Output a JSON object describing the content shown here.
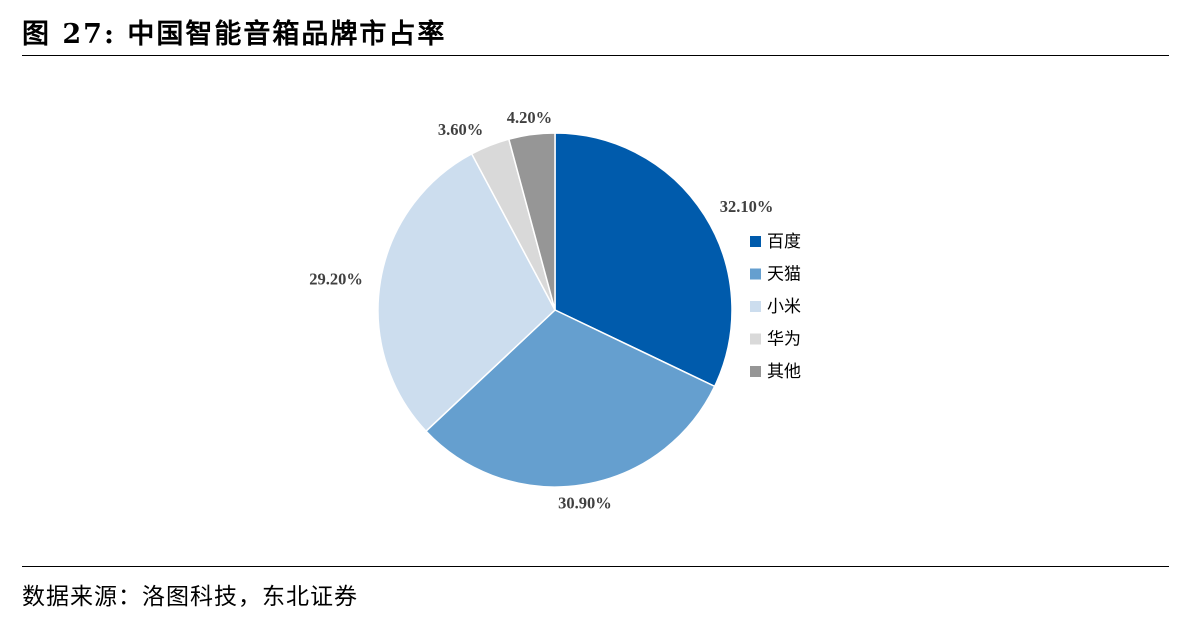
{
  "figure": {
    "title": "图 27: 中国智能音箱品牌市占率",
    "source": "数据来源：洛图科技，东北证券"
  },
  "chart_data": {
    "type": "pie",
    "title": "",
    "slices": [
      {
        "label": "百度",
        "value": 32.1,
        "display": "32.10%",
        "color": "#005BAC"
      },
      {
        "label": "天猫",
        "value": 30.9,
        "display": "30.90%",
        "color": "#659FCF"
      },
      {
        "label": "小米",
        "value": 29.2,
        "display": "29.20%",
        "color": "#CCDDEE"
      },
      {
        "label": "华为",
        "value": 3.6,
        "display": "3.60%",
        "color": "#D9D9D9"
      },
      {
        "label": "其他",
        "value": 4.2,
        "display": "4.20%",
        "color": "#969696"
      }
    ],
    "start_angle": "12 o'clock",
    "direction": "clockwise",
    "legend": {
      "position": "right"
    }
  }
}
